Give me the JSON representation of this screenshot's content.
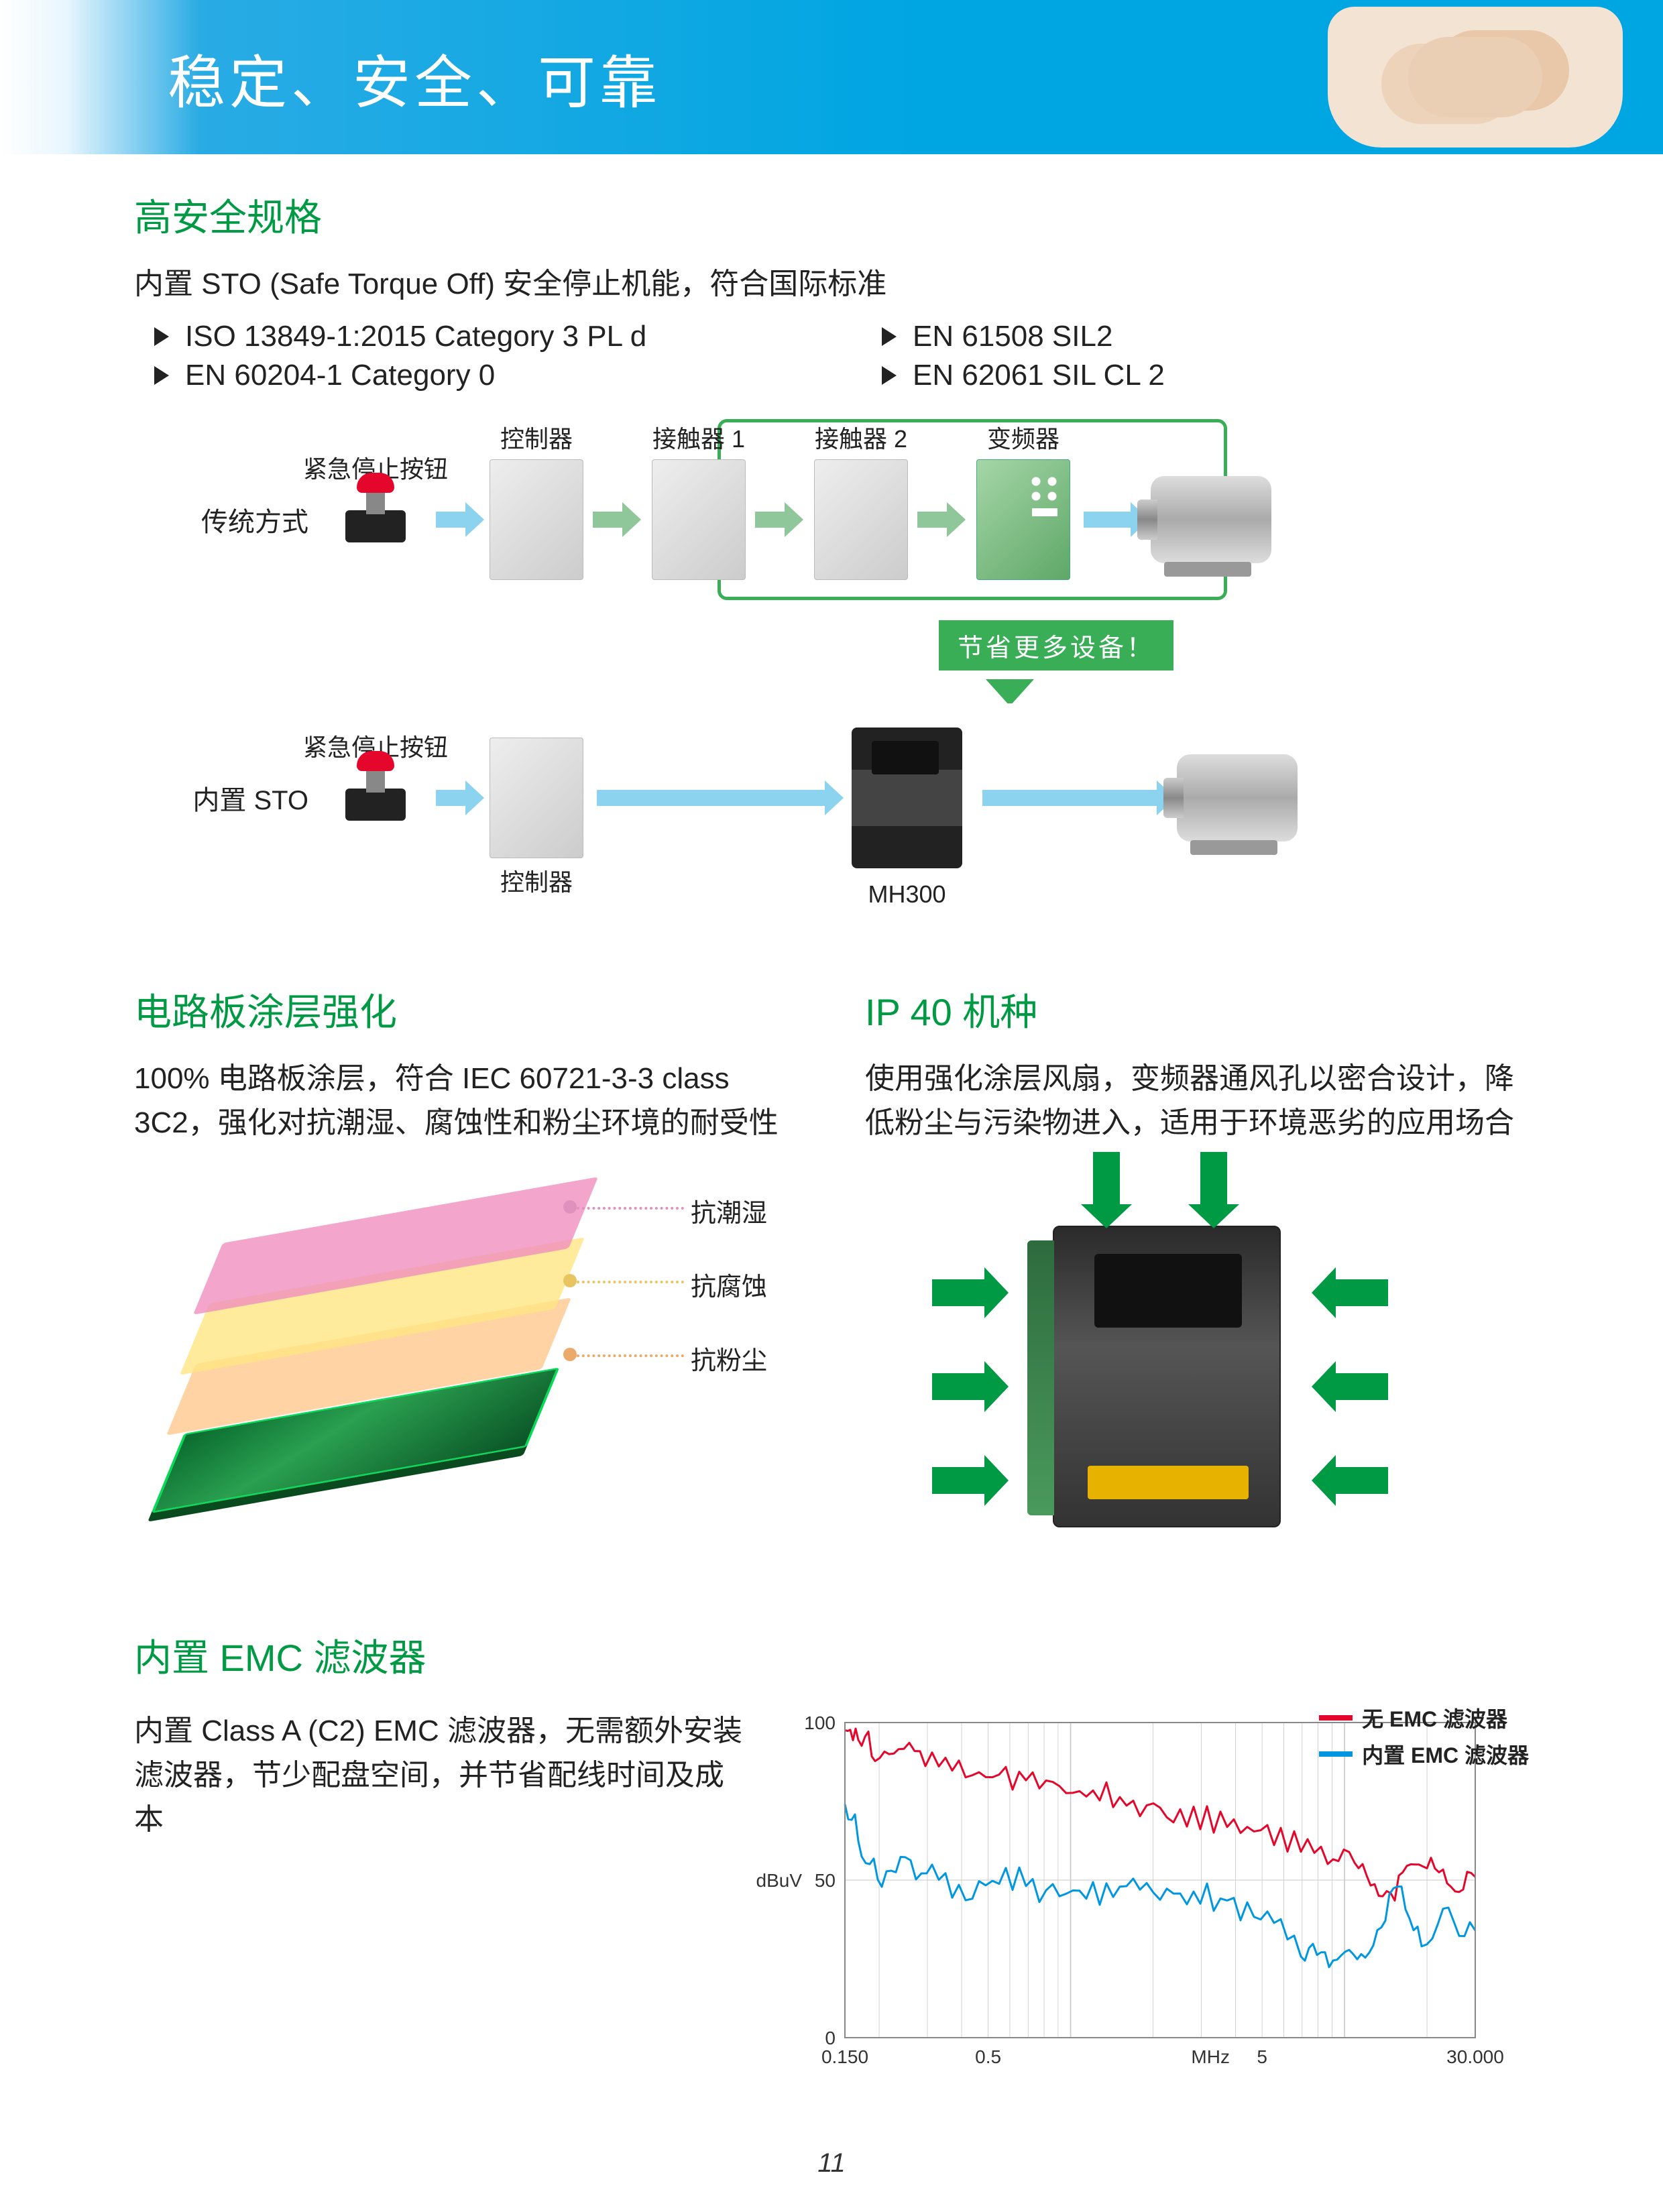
{
  "banner": {
    "title": "稳定、安全、可靠"
  },
  "safety": {
    "title": "高安全规格",
    "lead": "内置 STO (Safe Torque Off) 安全停止机能，符合国际标准",
    "standards": [
      "ISO 13849-1:2015 Category 3 PL d",
      "EN 61508 SIL2",
      "EN 60204-1 Category 0",
      "EN 62061 SIL CL 2"
    ]
  },
  "diagram": {
    "row1_label": "传统方式",
    "row2_label": "内置 STO",
    "stop_label": "紧急停止按钮",
    "box_controller": "控制器",
    "box_contactor1": "接触器 1",
    "box_contactor2": "接触器 2",
    "box_inverter": "变频器",
    "mh_label": "MH300",
    "save_tag": "节省更多设备！",
    "colors": {
      "save_green": "#3aae56",
      "arrow_blue": "#8cd3ef",
      "arrow_green": "#8fc69a"
    }
  },
  "coating": {
    "title": "电路板涂层强化",
    "desc": "100% 电路板涂层，符合 IEC 60721-3-3 class 3C2，强化对抗潮湿、腐蚀性和粉尘环境的耐受性",
    "layers": [
      {
        "label": "抗潮湿",
        "color": "#e091bd"
      },
      {
        "label": "抗腐蚀",
        "color": "#e8c560"
      },
      {
        "label": "抗粉尘",
        "color": "#eba96a"
      }
    ]
  },
  "ip40": {
    "title": "IP 40 机种",
    "desc": "使用强化涂层风扇，变频器通风孔以密合设计，降低粉尘与污染物进入，适用于环境恶劣的应用场合",
    "arrow_color": "#009944"
  },
  "emc": {
    "title": "内置 EMC 滤波器",
    "desc": "内置 Class A (C2) EMC 滤波器，无需额外安装滤波器，节少配盘空间，并节省配线时间及成本",
    "chart": {
      "type": "line",
      "y_label": "dBuV",
      "x_label": "MHz",
      "ylim": [
        0,
        100
      ],
      "yticks": [
        0.0,
        50,
        100
      ],
      "xlim": [
        0.15,
        30.0
      ],
      "xticks": [
        "0.150",
        "0.5",
        "5",
        "30.000"
      ],
      "xscale": "log",
      "background_color": "#ffffff",
      "grid_color": "#c8c8c8",
      "line_width": 3,
      "axis_fontsize": 28,
      "legend_items": [
        {
          "label": "无 EMC 滤波器",
          "color": "#e4062b"
        },
        {
          "label": "内置 EMC 滤波器",
          "color": "#0097e0"
        }
      ],
      "series_red": [
        [
          0,
          97
        ],
        [
          20,
          95
        ],
        [
          45,
          92
        ],
        [
          80,
          91
        ],
        [
          120,
          89
        ],
        [
          170,
          85
        ],
        [
          220,
          84
        ],
        [
          270,
          82
        ],
        [
          320,
          80
        ],
        [
          370,
          78
        ],
        [
          420,
          75
        ],
        [
          470,
          72
        ],
        [
          520,
          70
        ],
        [
          570,
          68
        ],
        [
          620,
          66
        ],
        [
          670,
          62
        ],
        [
          720,
          58
        ],
        [
          760,
          55
        ],
        [
          790,
          49
        ],
        [
          820,
          45
        ],
        [
          850,
          57
        ],
        [
          880,
          53
        ],
        [
          910,
          48
        ],
        [
          940,
          51
        ]
      ],
      "series_blue": [
        [
          0,
          72
        ],
        [
          25,
          62
        ],
        [
          55,
          46
        ],
        [
          90,
          55
        ],
        [
          130,
          52
        ],
        [
          180,
          45
        ],
        [
          230,
          50
        ],
        [
          280,
          48
        ],
        [
          330,
          47
        ],
        [
          380,
          46
        ],
        [
          430,
          48
        ],
        [
          480,
          46
        ],
        [
          530,
          44
        ],
        [
          580,
          42
        ],
        [
          630,
          38
        ],
        [
          680,
          30
        ],
        [
          710,
          22
        ],
        [
          740,
          27
        ],
        [
          770,
          24
        ],
        [
          800,
          36
        ],
        [
          830,
          48
        ],
        [
          860,
          30
        ],
        [
          900,
          40
        ],
        [
          940,
          34
        ]
      ]
    }
  },
  "page_num": "11"
}
